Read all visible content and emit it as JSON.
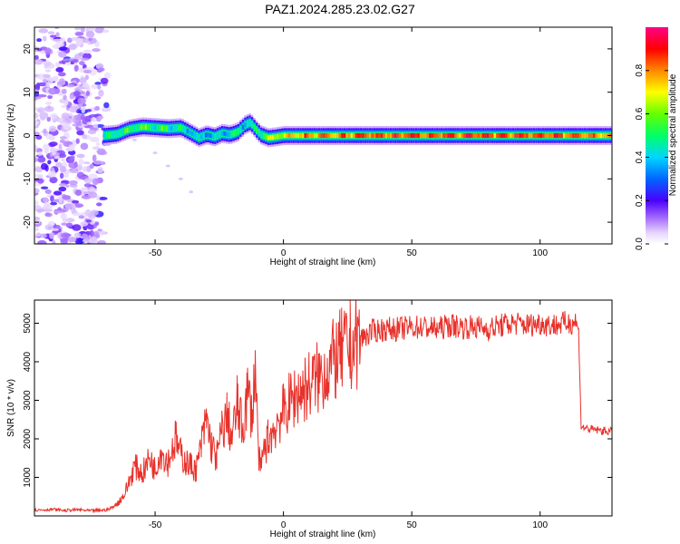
{
  "title": "PAZ1.2024.285.23.02.G27",
  "colors": {
    "snr_line": "#e8312a",
    "plot_bg": "#ffffff",
    "axis": "#000000"
  },
  "chart_data": [
    {
      "type": "heatmap",
      "xlabel": "Height of straight line (km)",
      "ylabel": "Frequency (Hz)",
      "xlim": [
        -97,
        128
      ],
      "ylim": [
        -25,
        25
      ],
      "xticks": [
        -50,
        0,
        50,
        100
      ],
      "yticks": [
        -20,
        -10,
        0,
        10,
        20
      ],
      "colorbar": {
        "label": "Normalized spectral amplitude",
        "range": [
          0,
          1
        ],
        "ticks": [
          0.0,
          0.2,
          0.4,
          0.6,
          0.8
        ],
        "colormap": "rainbow (white-violet-blue-cyan-green-yellow-red-magenta)"
      },
      "ridge_frequency_hz": {
        "x": [
          -70,
          -65,
          -60,
          -55,
          -50,
          -45,
          -40,
          -36,
          -33,
          -30,
          -27,
          -24,
          -21,
          -18,
          -15,
          -13,
          -11,
          -9,
          -6,
          -3,
          0,
          5,
          20,
          50,
          80,
          128
        ],
        "y": [
          0,
          0.3,
          1.5,
          2.0,
          1.8,
          1.6,
          1.8,
          0.5,
          -0.5,
          0.2,
          -0.3,
          0.5,
          0.2,
          0.8,
          2.5,
          3.0,
          1.5,
          0.2,
          -0.5,
          -0.3,
          0,
          0,
          0,
          0,
          0,
          0
        ],
        "amplitude": [
          0.4,
          0.45,
          0.5,
          0.55,
          0.5,
          0.5,
          0.45,
          0.4,
          0.35,
          0.4,
          0.35,
          0.4,
          0.4,
          0.45,
          0.45,
          0.4,
          0.5,
          0.55,
          0.6,
          0.65,
          0.7,
          0.75,
          0.8,
          0.85,
          0.85,
          0.8
        ]
      },
      "noise_region_x": [
        -97,
        -67
      ],
      "faint_branch": {
        "x": [
          -58,
          -50,
          -45,
          -40,
          -36
        ],
        "y": [
          -1,
          -4,
          -7,
          -10,
          -13
        ]
      }
    },
    {
      "type": "line",
      "xlabel": "Height of straight line (km)",
      "ylabel": "SNR (10 * v/v)",
      "xlim": [
        -97,
        128
      ],
      "ylim": [
        0,
        5600
      ],
      "xticks": [
        -50,
        0,
        50,
        100
      ],
      "yticks": [
        1000,
        2000,
        3000,
        4000,
        5000
      ],
      "series": [
        {
          "x": [
            -97,
            -90,
            -85,
            -80,
            -75,
            -70,
            -68,
            -65,
            -62,
            -60,
            -58,
            -55,
            -52,
            -50,
            -48,
            -45,
            -42,
            -40,
            -38,
            -36,
            -34,
            -32,
            -30,
            -28,
            -26,
            -24,
            -22,
            -20,
            -18,
            -16,
            -14,
            -12,
            -11,
            -10,
            -9,
            -8,
            -6,
            -4,
            -2,
            0,
            3,
            6,
            10,
            14,
            18,
            22,
            26,
            30,
            35,
            40,
            45,
            50,
            55,
            60,
            65,
            70,
            75,
            80,
            85,
            90,
            95,
            100,
            105,
            110,
            114,
            115,
            116,
            120,
            125,
            128
          ],
          "y": [
            150,
            170,
            140,
            160,
            130,
            150,
            170,
            300,
            550,
            900,
            1300,
            1100,
            1500,
            1200,
            1700,
            1400,
            2000,
            1600,
            1400,
            1300,
            1200,
            1800,
            2500,
            1800,
            1500,
            2200,
            2600,
            2000,
            2900,
            2200,
            3200,
            2600,
            4000,
            2000,
            1100,
            1600,
            2000,
            2200,
            2500,
            2700,
            3000,
            3200,
            3400,
            3600,
            3900,
            4200,
            4400,
            4600,
            4800,
            4850,
            4850,
            4900,
            4900,
            4850,
            4950,
            4900,
            4900,
            4850,
            4950,
            5000,
            4950,
            5000,
            4950,
            5000,
            5050,
            4800,
            2300,
            2250,
            2200,
            2200
          ]
        }
      ]
    }
  ]
}
